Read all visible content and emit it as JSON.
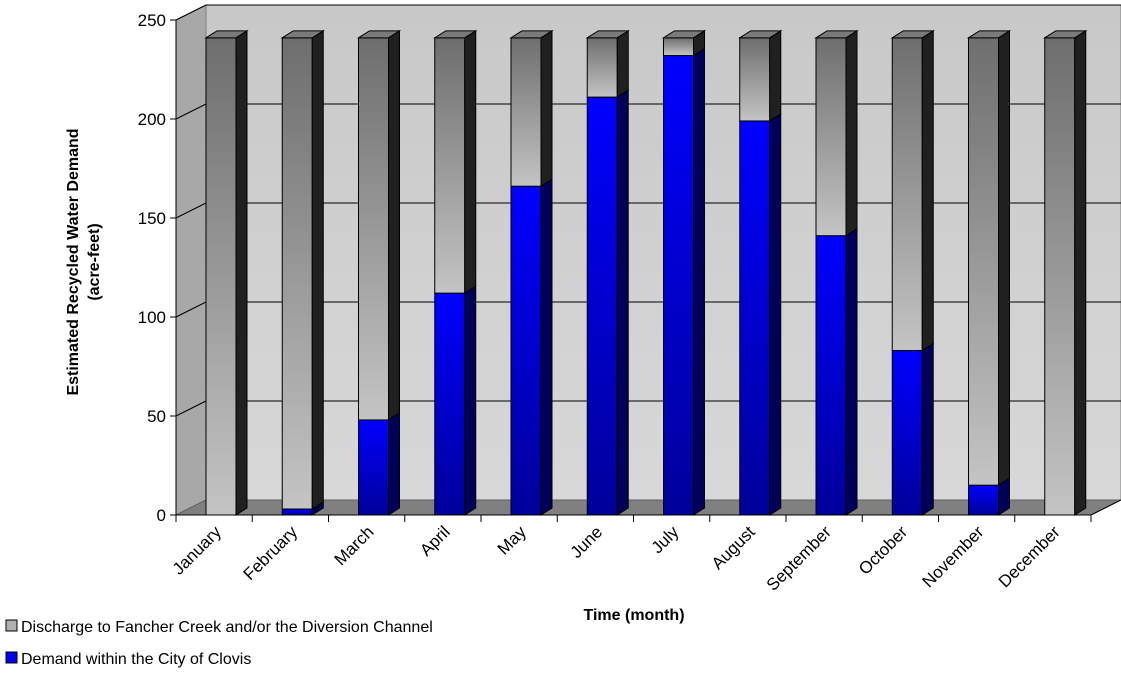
{
  "chart_data": {
    "type": "bar",
    "stacked": true,
    "three_d": true,
    "title": "",
    "xlabel": "Time (month)",
    "ylabel_lines": [
      "Estimated Recycled Water Demand",
      "(acre-feet)"
    ],
    "ylim": [
      0,
      250
    ],
    "yticks": [
      0,
      50,
      100,
      150,
      200,
      250
    ],
    "grid": true,
    "legend_position": "bottom-left",
    "categories": [
      "January",
      "February",
      "March",
      "April",
      "May",
      "June",
      "July",
      "August",
      "September",
      "October",
      "November",
      "December"
    ],
    "series": [
      {
        "name": "Demand within the City of Clovis",
        "color": "#0000ee",
        "values": [
          0,
          3,
          48,
          112,
          166,
          211,
          232,
          199,
          141,
          83,
          15,
          0
        ]
      },
      {
        "name": "Discharge to Fancher Creek and/or the Diversion Channel",
        "color": "#b0b0b0",
        "values": [
          241,
          238,
          193,
          129,
          75,
          30,
          9,
          42,
          100,
          158,
          226,
          241
        ]
      }
    ],
    "legend_order": [
      1,
      0
    ]
  }
}
